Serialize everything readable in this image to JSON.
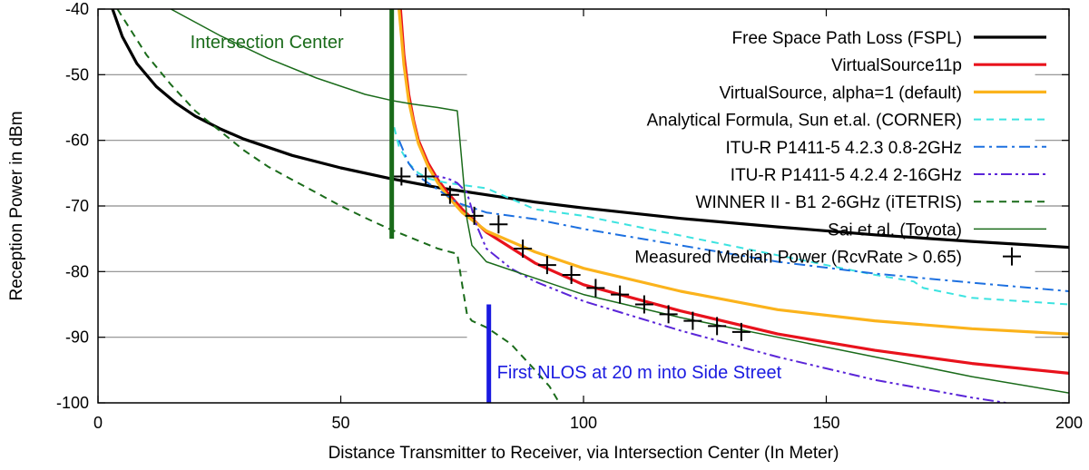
{
  "chart_data": {
    "type": "line",
    "title": "",
    "xlabel": "Distance Transmitter to Receiver, via Intersection Center (In Meter)",
    "ylabel": "Reception Power in dBm",
    "xlim": [
      0,
      200
    ],
    "ylim": [
      -100,
      -40
    ],
    "xticks": [
      0,
      50,
      100,
      150,
      200
    ],
    "yticks": [
      -100,
      -90,
      -80,
      -70,
      -60,
      -50,
      -40
    ],
    "grid": "horizontal, partial",
    "legend_position": "top-right",
    "series": [
      {
        "name": "Free Space Path Loss (FSPL)",
        "color": "#000000",
        "style": "solid",
        "x": [
          3,
          5,
          8,
          12,
          16,
          20,
          25,
          30,
          40,
          50,
          60,
          70,
          80,
          90,
          100,
          120,
          140,
          160,
          180,
          200
        ],
        "y": [
          -40,
          -44.2,
          -48.3,
          -51.8,
          -54.3,
          -56.3,
          -58.2,
          -59.8,
          -62.3,
          -64.2,
          -65.8,
          -67.2,
          -68.3,
          -69.4,
          -70.3,
          -71.9,
          -73.2,
          -74.4,
          -75.4,
          -76.3
        ]
      },
      {
        "name": "VirtualSource11p",
        "color": "#e8121c",
        "style": "solid",
        "x": [
          62.3,
          63,
          64,
          65,
          66,
          68,
          70,
          72,
          75,
          80,
          90,
          100,
          120,
          140,
          160,
          180,
          200
        ],
        "y": [
          -40,
          -47,
          -53,
          -57,
          -60,
          -63.5,
          -66,
          -68,
          -70.5,
          -74,
          -78.7,
          -82,
          -86,
          -89.5,
          -92,
          -94,
          -95.5
        ]
      },
      {
        "name": "VirtualSource, alpha=1 (default)",
        "color": "#fbb31c",
        "style": "solid",
        "x": [
          62,
          63,
          64,
          65,
          66,
          68,
          70,
          72,
          75,
          80,
          90,
          100,
          120,
          140,
          160,
          180,
          200
        ],
        "y": [
          -40,
          -48.5,
          -54,
          -57.5,
          -60.5,
          -64,
          -66.5,
          -68.5,
          -71,
          -73.8,
          -77,
          -79.5,
          -83,
          -85.8,
          -87.5,
          -88.7,
          -89.5
        ]
      },
      {
        "name": "Analytical Formula, Sun et.al. (CORNER)",
        "color": "#3ce3e0",
        "style": "dashed",
        "x": [
          61,
          62,
          64,
          66,
          68,
          70,
          72,
          74,
          76,
          80,
          90,
          100,
          120,
          140,
          160,
          168,
          170,
          180,
          200
        ],
        "y": [
          -58,
          -61,
          -63.5,
          -65,
          -65.8,
          -66.2,
          -66.5,
          -66.7,
          -66.9,
          -67.3,
          -70.5,
          -71.5,
          -74.5,
          -77.5,
          -80.5,
          -81.5,
          -82.5,
          -84,
          -85
        ]
      },
      {
        "name": "ITU-R P1411-5 4.2.3 0.8-2GHz",
        "color": "#1d70e0",
        "style": "dashdot",
        "x": [
          62,
          64,
          66,
          68,
          70,
          74,
          80,
          90,
          100,
          120,
          140,
          160,
          180,
          200
        ],
        "y": [
          -60,
          -63.5,
          -65.5,
          -66.5,
          -67.5,
          -69.5,
          -71,
          -72,
          -73.5,
          -76,
          -78.5,
          -80.3,
          -81.7,
          -83
        ]
      },
      {
        "name": "ITU-R P1411-5 4.2.4 2-16GHz",
        "color": "#5a25d8",
        "style": "dashdotdot",
        "x": [
          68,
          70,
          72,
          74,
          76,
          78,
          80,
          85,
          90,
          100,
          120,
          140,
          160,
          180,
          187
        ],
        "y": [
          -65.5,
          -65.5,
          -65.8,
          -66.5,
          -68,
          -73,
          -76.5,
          -79.5,
          -81.5,
          -84.5,
          -89,
          -93,
          -96.5,
          -99.2,
          -100
        ]
      },
      {
        "name": "WINNER II - B1 2-6GHz (iTETRIS)",
        "color": "#1a6b1a",
        "style": "dashed",
        "x": [
          4,
          10,
          15,
          20,
          25,
          30,
          35,
          40,
          45,
          50,
          55,
          60,
          65,
          70,
          74,
          75,
          76,
          77,
          80,
          85,
          90,
          93,
          95
        ],
        "y": [
          -40,
          -47,
          -51.5,
          -55.5,
          -58.5,
          -61.5,
          -64,
          -66,
          -68,
          -70,
          -71.8,
          -73.5,
          -75,
          -76.5,
          -77.3,
          -82,
          -86.5,
          -87.5,
          -88.5,
          -91,
          -95,
          -97.5,
          -100
        ]
      },
      {
        "name": "Sai et al. (Toyota)",
        "color": "#1a6b1a",
        "style": "solid-thin",
        "x": [
          15,
          25,
          35,
          45,
          55,
          61,
          65,
          70,
          74,
          76,
          77,
          80,
          90,
          100,
          120,
          140,
          160,
          180,
          200
        ],
        "y": [
          -40,
          -44,
          -47.5,
          -50.5,
          -53,
          -54,
          -54.5,
          -55,
          -55.5,
          -72,
          -76,
          -78.5,
          -81,
          -83.5,
          -87,
          -90,
          -93,
          -96,
          -98.5
        ]
      },
      {
        "name": "Measured Median Power (RcvRate > 0.65)",
        "color": "#000000",
        "style": "cross",
        "x": [
          62.5,
          67.5,
          72.5,
          77.5,
          82.5,
          87.5,
          92.5,
          97.5,
          102.5,
          107.5,
          112.5,
          117.5,
          122.5,
          127.5,
          132.5
        ],
        "y": [
          -65.5,
          -65.5,
          -68.3,
          -71.5,
          -72.8,
          -76.5,
          -79,
          -80.5,
          -82.5,
          -83.5,
          -85,
          -86.5,
          -87.5,
          -88.3,
          -89.2
        ]
      }
    ],
    "annotations": [
      {
        "text": "Intersection Center",
        "x": 60.5,
        "y_from": -40,
        "y_to": -75,
        "color": "#1a6b1a"
      },
      {
        "text": "First NLOS at 20 m into Side Street",
        "x": 80.5,
        "y_from": -85,
        "y_to": -100,
        "color": "#1a1ae0"
      }
    ]
  }
}
